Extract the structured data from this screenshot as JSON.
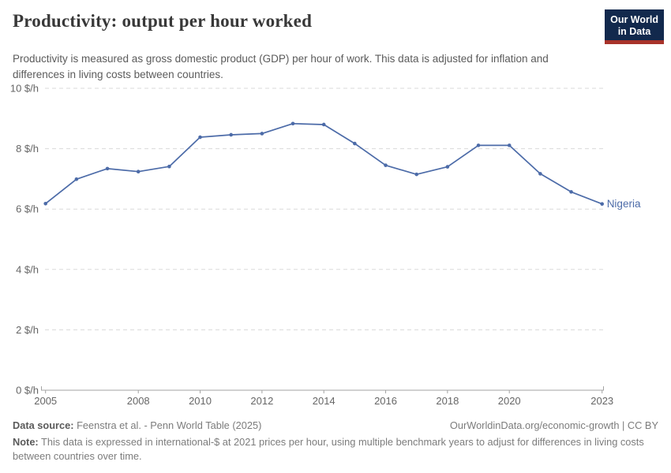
{
  "header": {
    "title": "Productivity: output per hour worked",
    "subtitle": "Productivity is measured as gross domestic product (GDP) per hour of work. This data is adjusted for inflation and differences in living costs between countries.",
    "logo": {
      "line1": "Our World",
      "line2": "in Data"
    }
  },
  "chart_data": {
    "type": "line",
    "title": "Productivity: output per hour worked",
    "unit": "$/h",
    "x": [
      2005,
      2006,
      2007,
      2008,
      2009,
      2010,
      2011,
      2012,
      2013,
      2014,
      2015,
      2016,
      2017,
      2018,
      2019,
      2020,
      2021,
      2022,
      2023
    ],
    "series": [
      {
        "name": "Nigeria",
        "color": "#4c6ba8",
        "values": [
          6.18,
          6.99,
          7.34,
          7.24,
          7.41,
          8.38,
          8.46,
          8.5,
          8.83,
          8.8,
          8.17,
          7.45,
          7.15,
          7.4,
          8.11,
          8.11,
          7.17,
          6.57,
          6.17
        ]
      }
    ],
    "ylim": [
      0,
      10
    ],
    "yticks": [
      {
        "value": 0,
        "label": "0 $/h"
      },
      {
        "value": 2,
        "label": "2 $/h"
      },
      {
        "value": 4,
        "label": "4 $/h"
      },
      {
        "value": 6,
        "label": "6 $/h"
      },
      {
        "value": 8,
        "label": "8 $/h"
      },
      {
        "value": 10,
        "label": "10 $/h"
      }
    ],
    "xticks": [
      2005,
      2008,
      2010,
      2012,
      2014,
      2016,
      2018,
      2020,
      2023
    ],
    "grid": "horizontal-dashed",
    "legend_position": "end-of-line",
    "end_label": "Nigeria"
  },
  "footer": {
    "datasource_label": "Data source:",
    "datasource_text": " Feenstra et al. - Penn World Table (2025)",
    "link": "OurWorldinData.org/economic-growth | CC BY",
    "note_label": "Note:",
    "note_text": " This data is expressed in international-$ at 2021 prices per hour, using multiple benchmark years to adjust for differences in living costs between countries over time."
  },
  "colors": {
    "line": "#4c6ba8",
    "grid": "#dadada",
    "axis": "#a3a3a3",
    "tick_label": "#666666",
    "title": "#383838",
    "subtitle": "#5b5b5b",
    "logo_bg": "#12294d",
    "logo_stripe": "#a8332a"
  }
}
